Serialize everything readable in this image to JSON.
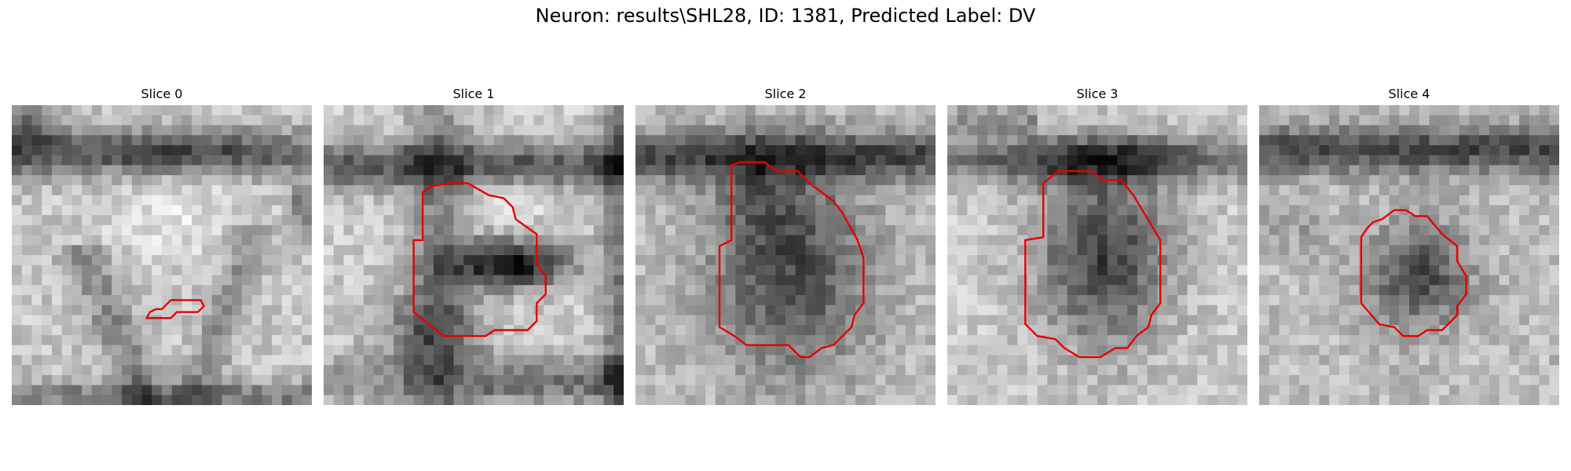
{
  "figure": {
    "title": "Neuron: results\\SHL28, ID: 1381, Predicted Label: DV"
  },
  "colors": {
    "contour": "#e60000",
    "background": "#ffffff",
    "text": "#000000"
  },
  "panels": [
    {
      "title": "Slice 0"
    },
    {
      "title": "Slice 1"
    },
    {
      "title": "Slice 2"
    },
    {
      "title": "Slice 3"
    },
    {
      "title": "Slice 4"
    }
  ]
}
